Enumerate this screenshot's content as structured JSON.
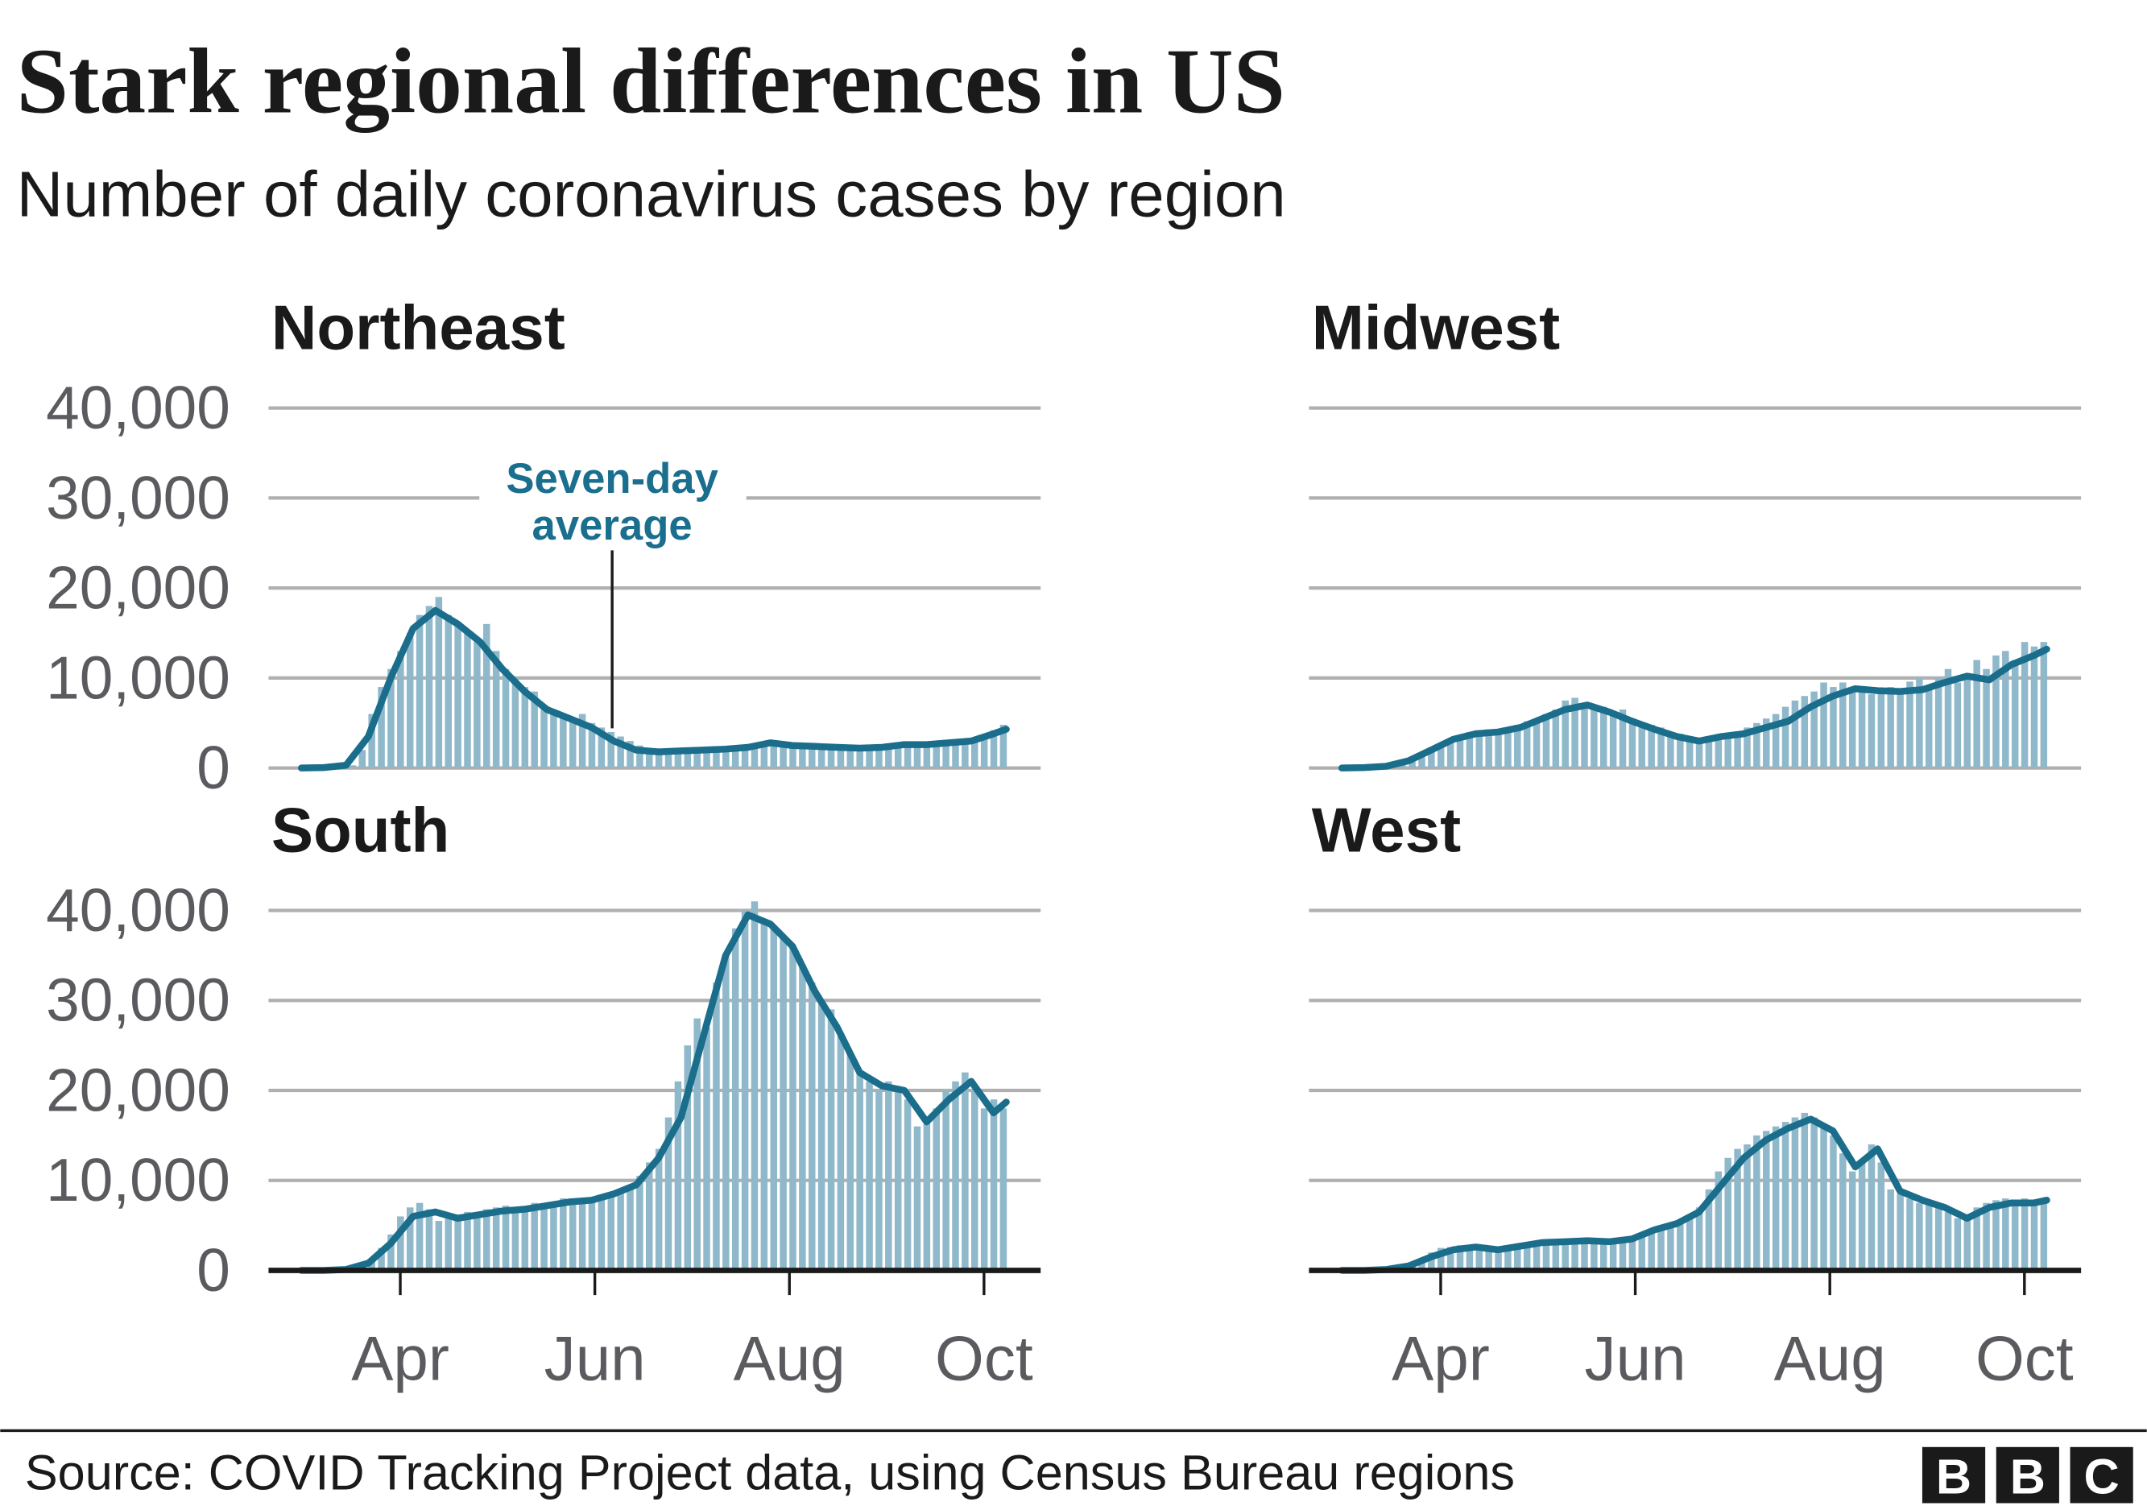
{
  "header": {
    "title": "Stark regional differences in US",
    "subtitle": "Number of daily coronavirus cases by region"
  },
  "annotation": {
    "line1": "Seven-day",
    "line2": "average"
  },
  "footer": {
    "source": "Source: COVID Tracking Project data, using Census Bureau regions",
    "logo": [
      "B",
      "B",
      "C"
    ]
  },
  "colors": {
    "average_line": "#1a6e8c",
    "daily_bars": "#8fb8cb",
    "gridline": "#b0b0b0",
    "axis": "#1a1a1a"
  },
  "chart_data": {
    "type": "bar+line small multiples",
    "y_unit": "daily cases",
    "ylim": [
      0,
      40000
    ],
    "y_ticks": [
      0,
      10000,
      20000,
      30000,
      40000
    ],
    "y_tick_labels": [
      "0",
      "10,000",
      "20,000",
      "30,000",
      "40,000"
    ],
    "x_ticks": [
      "Apr",
      "Jun",
      "Aug",
      "Oct"
    ],
    "grid": true,
    "average_dates": [
      "Mar 1",
      "Mar 8",
      "Mar 15",
      "Mar 22",
      "Mar 29",
      "Apr 5",
      "Apr 12",
      "Apr 19",
      "Apr 26",
      "May 3",
      "May 10",
      "May 17",
      "May 24",
      "May 31",
      "Jun 7",
      "Jun 14",
      "Jun 21",
      "Jun 28",
      "Jul 5",
      "Jul 12",
      "Jul 19",
      "Jul 26",
      "Aug 2",
      "Aug 9",
      "Aug 16",
      "Aug 23",
      "Aug 30",
      "Sep 6",
      "Sep 13",
      "Sep 20",
      "Sep 27",
      "Oct 4",
      "Oct 8"
    ],
    "daily_dates": [
      "Mar 1",
      "Mar 4",
      "Mar 7",
      "Mar 10",
      "Mar 13",
      "Mar 16",
      "Mar 19",
      "Mar 22",
      "Mar 25",
      "Mar 28",
      "Mar 31",
      "Apr 3",
      "Apr 6",
      "Apr 9",
      "Apr 12",
      "Apr 15",
      "Apr 18",
      "Apr 21",
      "Apr 24",
      "Apr 27",
      "Apr 30",
      "May 3",
      "May 6",
      "May 9",
      "May 12",
      "May 15",
      "May 18",
      "May 21",
      "May 24",
      "May 27",
      "May 30",
      "Jun 2",
      "Jun 5",
      "Jun 8",
      "Jun 11",
      "Jun 14",
      "Jun 17",
      "Jun 20",
      "Jun 23",
      "Jun 26",
      "Jun 29",
      "Jul 2",
      "Jul 5",
      "Jul 8",
      "Jul 11",
      "Jul 14",
      "Jul 17",
      "Jul 20",
      "Jul 23",
      "Jul 26",
      "Jul 29",
      "Aug 1",
      "Aug 4",
      "Aug 7",
      "Aug 10",
      "Aug 13",
      "Aug 16",
      "Aug 19",
      "Aug 22",
      "Aug 25",
      "Aug 28",
      "Aug 31",
      "Sep 3",
      "Sep 6",
      "Sep 9",
      "Sep 12",
      "Sep 15",
      "Sep 18",
      "Sep 21",
      "Sep 24",
      "Sep 27",
      "Sep 30",
      "Oct 3",
      "Oct 6"
    ],
    "regions": [
      {
        "name": "Northeast",
        "show_y_labels": true,
        "show_x_axis": false,
        "seven_day_average": [
          0,
          50,
          300,
          3500,
          10000,
          15500,
          17500,
          16000,
          14000,
          11000,
          8500,
          6500,
          5500,
          4500,
          3000,
          2000,
          1800,
          1900,
          2000,
          2100,
          2300,
          2800,
          2500,
          2400,
          2300,
          2200,
          2300,
          2600,
          2600,
          2800,
          3000,
          3800,
          4300
        ],
        "daily_cases": [
          0,
          0,
          0,
          0,
          100,
          300,
          2000,
          6000,
          9000,
          11000,
          13000,
          15000,
          17000,
          18000,
          19000,
          17000,
          16000,
          15000,
          14000,
          16000,
          13000,
          11000,
          10000,
          9000,
          8500,
          7000,
          6500,
          6000,
          5500,
          6000,
          5000,
          4500,
          4000,
          3500,
          3000,
          2500,
          2000,
          1800,
          1800,
          1900,
          1800,
          2000,
          2000,
          2100,
          2000,
          2200,
          2300,
          2400,
          2800,
          3000,
          2600,
          2500,
          2400,
          2500,
          2300,
          2200,
          2200,
          2300,
          2100,
          2200,
          2400,
          2500,
          2600,
          2700,
          2500,
          2800,
          2900,
          3000,
          2800,
          3100,
          3200,
          3300,
          4200,
          4800
        ]
      },
      {
        "name": "Midwest",
        "show_y_labels": false,
        "show_x_axis": false,
        "seven_day_average": [
          0,
          50,
          200,
          800,
          2000,
          3200,
          3800,
          4000,
          4500,
          5500,
          6500,
          7000,
          6200,
          5200,
          4300,
          3500,
          3000,
          3500,
          3800,
          4500,
          5200,
          6800,
          8000,
          8800,
          8600,
          8500,
          8700,
          9500,
          10200,
          9800,
          11500,
          12500,
          13200
        ],
        "daily_cases": [
          0,
          0,
          0,
          0,
          0,
          100,
          300,
          700,
          1200,
          1800,
          2500,
          3000,
          3600,
          4000,
          3900,
          4300,
          4000,
          4500,
          4800,
          5200,
          5500,
          6000,
          6500,
          7500,
          7800,
          7000,
          6500,
          6800,
          6200,
          6500,
          5500,
          5000,
          4800,
          4500,
          4000,
          3800,
          3500,
          3200,
          3400,
          3600,
          3800,
          4000,
          4500,
          5000,
          5500,
          6000,
          6800,
          7500,
          8000,
          8500,
          9500,
          9000,
          9500,
          8800,
          9000,
          8200,
          8600,
          9000,
          8500,
          9600,
          10000,
          9000,
          10000,
          11000,
          9500,
          10000,
          12000,
          11000,
          12500,
          13000,
          12000,
          14000,
          13500,
          14000
        ]
      },
      {
        "name": "South",
        "show_y_labels": true,
        "show_x_axis": true,
        "seven_day_average": [
          0,
          0,
          100,
          800,
          3000,
          6000,
          6500,
          5800,
          6200,
          6600,
          6800,
          7200,
          7600,
          7800,
          8500,
          9500,
          12500,
          17000,
          26000,
          35000,
          39500,
          38500,
          36000,
          31000,
          27000,
          22000,
          20500,
          20000,
          16500,
          19000,
          21000,
          17500,
          18700
        ],
        "daily_cases": [
          0,
          0,
          0,
          0,
          0,
          100,
          400,
          1200,
          2500,
          4000,
          6000,
          7000,
          7500,
          6800,
          5500,
          5800,
          6200,
          6500,
          6000,
          6800,
          7000,
          7200,
          6800,
          7000,
          7500,
          6800,
          7600,
          8000,
          7500,
          8000,
          7800,
          8200,
          8500,
          9000,
          9500,
          10500,
          12000,
          13500,
          17000,
          21000,
          25000,
          28000,
          27000,
          32000,
          35000,
          38000,
          40000,
          41000,
          39000,
          38000,
          37000,
          36000,
          34000,
          32000,
          30000,
          29000,
          26000,
          24000,
          22000,
          21000,
          20000,
          21000,
          20000,
          19000,
          16000,
          17000,
          18000,
          20000,
          21000,
          22000,
          20000,
          18000,
          19000,
          18000
        ]
      },
      {
        "name": "West",
        "show_y_labels": false,
        "show_x_axis": true,
        "seven_day_average": [
          0,
          0,
          100,
          500,
          1500,
          2300,
          2600,
          2300,
          2700,
          3100,
          3200,
          3300,
          3200,
          3500,
          4500,
          5200,
          6500,
          9500,
          12500,
          14500,
          15800,
          16800,
          15500,
          11500,
          13500,
          8800,
          7800,
          7000,
          5800,
          7000,
          7500,
          7500,
          7800
        ],
        "daily_cases": [
          0,
          0,
          0,
          0,
          0,
          100,
          300,
          700,
          1200,
          2000,
          2500,
          2600,
          2800,
          2700,
          2500,
          2200,
          2400,
          2600,
          2800,
          3000,
          3100,
          3300,
          3200,
          3400,
          3300,
          3200,
          3400,
          3300,
          3200,
          3500,
          3400,
          3800,
          4300,
          4800,
          5000,
          5400,
          6000,
          7000,
          9000,
          11000,
          12500,
          13500,
          14000,
          15000,
          15500,
          16000,
          16500,
          17000,
          17500,
          17000,
          16000,
          15000,
          13000,
          11000,
          12000,
          14000,
          12000,
          9000,
          8500,
          8000,
          7500,
          7500,
          7000,
          6500,
          5800,
          6200,
          7000,
          7500,
          7800,
          8000,
          7500,
          8000,
          7800,
          8000
        ]
      }
    ]
  }
}
